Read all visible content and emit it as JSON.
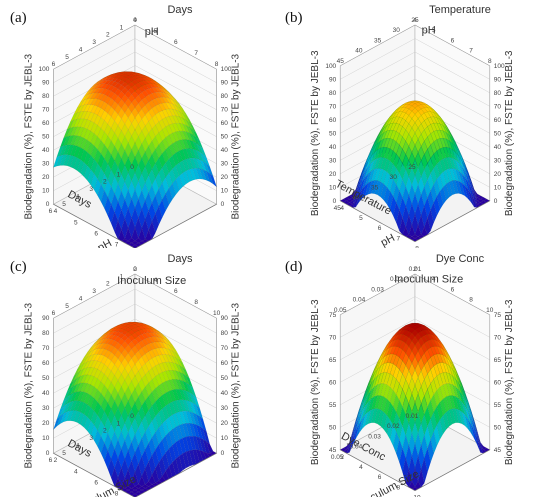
{
  "chart_data": [
    {
      "type": "surface3d",
      "panel_label": "(a)",
      "x_label_back": "pH",
      "y_label_back": "Days",
      "x_label_front": "pH",
      "y_label_front": "Days",
      "z_label": "Biodegradation (%), FSTE by JEBL-3",
      "x_ticks": [
        "4",
        "5",
        "6",
        "7",
        "8"
      ],
      "y_ticks": [
        "0",
        "1",
        "2",
        "3",
        "4",
        "5",
        "6"
      ],
      "z_ticks": [
        "0",
        "10",
        "20",
        "30",
        "40",
        "50",
        "60",
        "70",
        "80",
        "90",
        "100"
      ],
      "z_range": [
        0,
        100
      ],
      "z_peak": 88
    },
    {
      "type": "surface3d",
      "panel_label": "(b)",
      "x_label_back": "pH",
      "y_label_back": "Temperature",
      "x_label_front": "pH",
      "y_label_front": "Temperature",
      "z_label": "Biodegradation (%), FSTE by JEBL-3",
      "x_ticks": [
        "4",
        "5",
        "6",
        "7",
        "8"
      ],
      "y_ticks": [
        "25",
        "30",
        "35",
        "40",
        "45"
      ],
      "z_ticks": [
        "0",
        "10",
        "20",
        "30",
        "40",
        "50",
        "60",
        "70",
        "80",
        "90",
        "100"
      ],
      "z_range": [
        0,
        100
      ],
      "z_peak": 70
    },
    {
      "type": "surface3d",
      "panel_label": "(c)",
      "x_label_back": "Inoculum Size",
      "y_label_back": "Days",
      "x_label_front": "Inoculum Size",
      "y_label_front": "Days",
      "z_label": "Biodegradation (%), FSTE by JEBL-3",
      "x_ticks": [
        "2",
        "4",
        "6",
        "8",
        "10"
      ],
      "y_ticks": [
        "0",
        "1",
        "2",
        "3",
        "4",
        "5",
        "6"
      ],
      "z_ticks": [
        "0",
        "10",
        "20",
        "30",
        "40",
        "50",
        "60",
        "70",
        "80",
        "90"
      ],
      "z_range": [
        0,
        90
      ],
      "z_peak": 82
    },
    {
      "type": "surface3d",
      "panel_label": "(d)",
      "x_label_back": "Inoculum Size",
      "y_label_back": "Dye Conc",
      "x_label_front": "Inoculum Size",
      "y_label_front": "Dye Conc",
      "z_label": "Biodegradation (%), FSTE by JEBL-3",
      "x_ticks": [
        "2",
        "4",
        "6",
        "8",
        "10"
      ],
      "y_ticks": [
        "0.01",
        "0.02",
        "0.03",
        "0.04",
        "0.05"
      ],
      "z_ticks": [
        "45",
        "50",
        "55",
        "60",
        "65",
        "70",
        "75"
      ],
      "z_range": [
        45,
        75
      ],
      "z_peak": 74
    }
  ]
}
